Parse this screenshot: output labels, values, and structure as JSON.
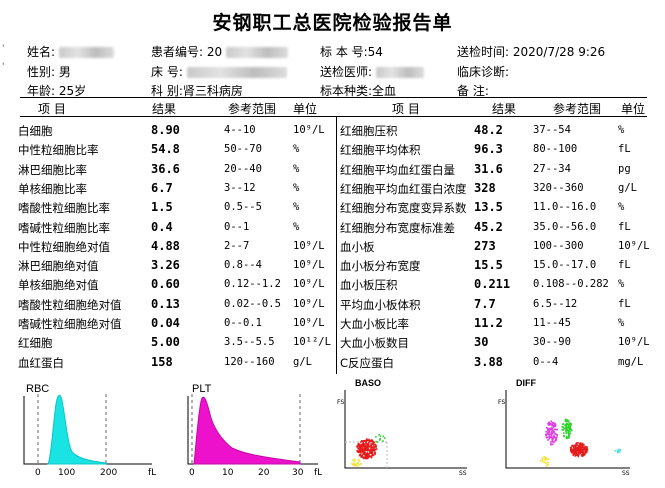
{
  "title": "安钢职工总医院检验报告单",
  "header": {
    "name_label": "姓名:",
    "patient_no_label": "患者编号:",
    "patient_no_prefix": "20",
    "sample_no": "标 本 号:54",
    "send_time": "送检时间: 2020/7/28  9:26",
    "sex": "性别: 男",
    "bed_label": "床    号:",
    "doctor_label": "送检医师:",
    "diagnosis": "临床诊断:",
    "age": "年龄: 25岁",
    "dept": "科     别:肾三科病房",
    "sample_type": "标本种类:全血",
    "remark": "备    注:"
  },
  "columns": {
    "item": "项    目",
    "result": "结果",
    "range": "参考范围",
    "unit": "单位"
  },
  "left_rows": [
    {
      "name": "白细胞",
      "value": "8.90",
      "range": "4--10",
      "unit": "10⁹/L"
    },
    {
      "name": "中性粒细胞比率",
      "value": "54.8",
      "range": "50--70",
      "unit": "%"
    },
    {
      "name": "淋巴细胞比率",
      "value": "36.6",
      "range": "20--40",
      "unit": "%"
    },
    {
      "name": "单核细胞比率",
      "value": "6.7",
      "range": "3--12",
      "unit": "%"
    },
    {
      "name": "嗜酸性粒细胞比率",
      "value": "1.5",
      "range": "0.5--5",
      "unit": "%"
    },
    {
      "name": "嗜碱性粒细胞比率",
      "value": "0.4",
      "range": "0--1",
      "unit": "%"
    },
    {
      "name": "中性粒细胞绝对值",
      "value": "4.88",
      "range": "2--7",
      "unit": "10⁹/L"
    },
    {
      "name": "淋巴细胞绝对值",
      "value": "3.26",
      "range": "0.8--4",
      "unit": "10⁹/L"
    },
    {
      "name": "单核细胞绝对值",
      "value": "0.60",
      "range": "0.12--1.2",
      "unit": "10⁹/L"
    },
    {
      "name": "嗜酸性粒细胞绝对值",
      "value": "0.13",
      "range": "0.02--0.5",
      "unit": "10⁹/L"
    },
    {
      "name": "嗜碱性粒细胞绝对值",
      "value": "0.04",
      "range": "0--0.1",
      "unit": "10⁹/L"
    },
    {
      "name": "红细胞",
      "value": "5.00",
      "range": "3.5--5.5",
      "unit": "10¹²/L"
    },
    {
      "name": "血红蛋白",
      "value": "158",
      "range": "120--160",
      "unit": "g/L"
    }
  ],
  "right_rows": [
    {
      "name": "红细胞压积",
      "value": "48.2",
      "range": "37--54",
      "unit": "%"
    },
    {
      "name": "红细胞平均体积",
      "value": "96.3",
      "range": "80--100",
      "unit": "fL"
    },
    {
      "name": "红细胞平均血红蛋白量",
      "value": "31.6",
      "range": "27--34",
      "unit": "pg"
    },
    {
      "name": "红细胞平均血红蛋白浓度",
      "value": "328",
      "range": "320--360",
      "unit": "g/L"
    },
    {
      "name": "红细胞分布宽度变异系数",
      "value": "13.5",
      "range": "11.0--16.0",
      "unit": "%"
    },
    {
      "name": "红细胞分布宽度标准差",
      "value": "45.2",
      "range": "35.0--56.0",
      "unit": "fL"
    },
    {
      "name": "血小板",
      "value": "273",
      "range": "100--300",
      "unit": "10⁹/L"
    },
    {
      "name": "血小板分布宽度",
      "value": "15.5",
      "range": "15.0--17.0",
      "unit": "fL"
    },
    {
      "name": "血小板压积",
      "value": "0.211",
      "range": "0.108--0.282",
      "unit": "%"
    },
    {
      "name": "平均血小板体积",
      "value": "7.7",
      "range": "6.5--12",
      "unit": "fL"
    },
    {
      "name": "大血小板比率",
      "value": "11.2",
      "range": "11--45",
      "unit": "%"
    },
    {
      "name": "大血小板数目",
      "value": "30",
      "range": "30--90",
      "unit": "10⁹/L"
    },
    {
      "name": "C反应蛋白",
      "value": "3.88",
      "range": "0--4",
      "unit": "mg/L"
    }
  ],
  "graphs": {
    "rbc": {
      "label": "RBC",
      "ticks": [
        "0",
        "100",
        "200"
      ],
      "axis": "fL"
    },
    "plt": {
      "label": "PLT",
      "ticks": [
        "0",
        "10",
        "20",
        "30"
      ],
      "axis": "fL"
    },
    "baso": {
      "label": "BASO",
      "y": "FS",
      "x": "SS"
    },
    "diff": {
      "label": "DIFF",
      "y": "FS",
      "x": "SS"
    }
  },
  "colors": {
    "rbc": "#19e3e3",
    "plt": "#ee11cc",
    "red": "#e51b1b",
    "green": "#2ad42a",
    "magenta": "#e040e0",
    "yellow": "#f2e33a",
    "cyan": "#55dfe8"
  }
}
